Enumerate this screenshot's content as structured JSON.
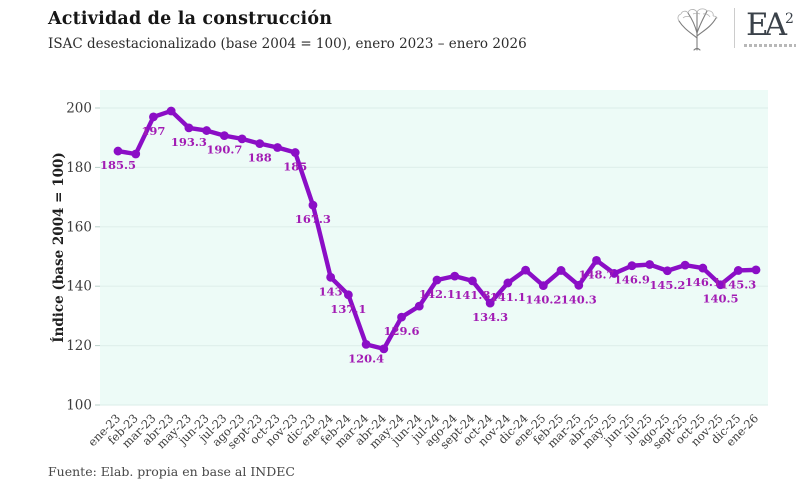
{
  "header": {
    "title": "Actividad de la construcción",
    "subtitle": "ISAC desestacionalizado (base 2004 = 100), enero 2023 – enero 2026"
  },
  "logo": {
    "monogram": "EA",
    "superscript": "2"
  },
  "footer": {
    "source": "Fuente: Elab. propia en base al INDEC"
  },
  "chart_data": {
    "type": "line",
    "title": "Actividad de la construcción",
    "subtitle": "ISAC desestacionalizado (base 2004 = 100), enero 2023 – enero 2026",
    "xlabel": "",
    "ylabel": "Índice (base 2004 = 100)",
    "ylim": [
      100,
      206
    ],
    "yticks": [
      100,
      120,
      140,
      160,
      180,
      200
    ],
    "grid": true,
    "legend": "none",
    "line_color": "#8B0EC6",
    "label_color": "#A21CB4",
    "plot_bg": "#EDFBF7",
    "grid_color": "#E0F0EC",
    "tick_color": "#3C3C3C",
    "categories": [
      "ene-23",
      "feb-23",
      "mar-23",
      "abr-23",
      "may-23",
      "jun-23",
      "jul-23",
      "ago-23",
      "sept-23",
      "oct-23",
      "nov-23",
      "dic-23",
      "ene-24",
      "feb-24",
      "mar-24",
      "abr-24",
      "may-24",
      "jun-24",
      "jul-24",
      "ago-24",
      "sept-24",
      "oct-24",
      "nov-24",
      "dic-24",
      "ene-25",
      "feb-25",
      "mar-25",
      "abr-25",
      "may-25",
      "jun-25",
      "jul-25",
      "ago-25",
      "sept-25",
      "oct-25",
      "nov-25",
      "dic-25",
      "ene-26"
    ],
    "values": [
      185.5,
      184.5,
      197,
      199,
      193.3,
      192.4,
      190.7,
      189.6,
      188,
      186.7,
      185,
      167.3,
      143,
      137.1,
      120.4,
      118.9,
      129.6,
      133.3,
      142.1,
      143.4,
      141.8,
      134.3,
      141.1,
      145.4,
      140.2,
      145.3,
      140.3,
      148.7,
      144.3,
      146.9,
      147.3,
      145.2,
      147.1,
      146.1,
      140.5,
      145.3,
      145.5
    ],
    "point_labels": [
      "185.5",
      "",
      "197",
      "",
      "193.3",
      "",
      "190.7",
      "",
      "188",
      "",
      "185",
      "167.3",
      "143",
      "137.1",
      "120.4",
      "",
      "129.6",
      "",
      "142.1",
      "",
      "141.8",
      "134.3",
      "141.1",
      "",
      "140.2",
      "",
      "140.3",
      "148.7",
      "",
      "146.9",
      "",
      "145.2",
      "",
      "146.1",
      "140.5",
      "145.3",
      ""
    ]
  }
}
